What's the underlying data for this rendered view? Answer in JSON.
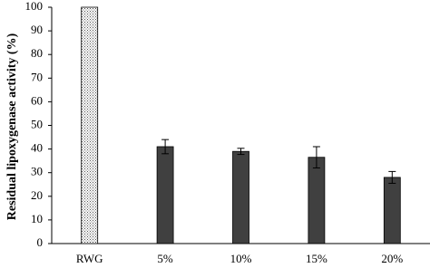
{
  "chart_data": {
    "type": "bar",
    "y_label": "Residual lipoxygenase activity (%)",
    "categories": [
      "RWG",
      "5%",
      "10%",
      "15%",
      "20%"
    ],
    "values": [
      100,
      41,
      39,
      36.5,
      28
    ],
    "errors": [
      null,
      3,
      1.3,
      4.5,
      2.5
    ],
    "colors": [
      "#ffffff",
      "#404040",
      "#404040",
      "#404040",
      "#404040"
    ],
    "patterns": [
      "dots",
      null,
      null,
      null,
      null
    ],
    "ylim": [
      0,
      100
    ],
    "yticks": [
      0,
      10,
      20,
      30,
      40,
      50,
      60,
      70,
      80,
      90,
      100
    ],
    "grid": false
  }
}
